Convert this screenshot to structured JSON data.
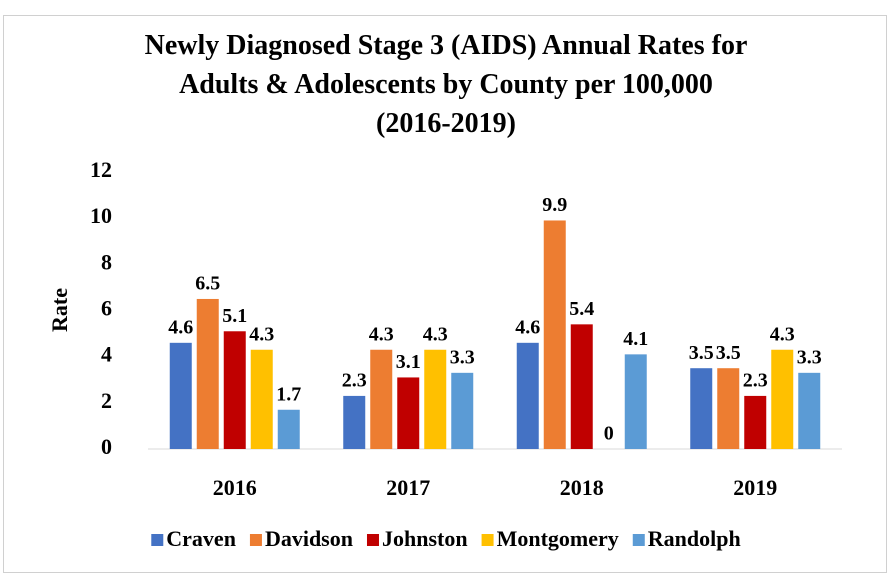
{
  "chart_data": {
    "type": "bar",
    "title": "Newly Diagnosed Stage 3 (AIDS) Annual Rates for\nAdults & Adolescents by County per 100,000\n(2016-2019)",
    "y_label": "Rate",
    "categories": [
      "2016",
      "2017",
      "2018",
      "2019"
    ],
    "series": [
      {
        "name": "Craven",
        "color": "#4472c4",
        "values": [
          4.6,
          2.3,
          4.6,
          3.5
        ]
      },
      {
        "name": "Davidson",
        "color": "#ed7d31",
        "values": [
          6.5,
          4.3,
          9.9,
          3.5
        ]
      },
      {
        "name": "Johnston",
        "color": "#c00000",
        "values": [
          5.1,
          3.1,
          5.4,
          2.3
        ]
      },
      {
        "name": "Montgomery",
        "color": "#ffc000",
        "values": [
          4.3,
          4.3,
          0,
          4.3
        ]
      },
      {
        "name": "Randolph",
        "color": "#5b9bd5",
        "values": [
          1.7,
          3.3,
          4.1,
          3.3
        ]
      }
    ],
    "ylim": [
      0,
      12
    ],
    "yticks": [
      0,
      2,
      4,
      6,
      8,
      10,
      12
    ],
    "grid": false,
    "legend": "bottom"
  }
}
